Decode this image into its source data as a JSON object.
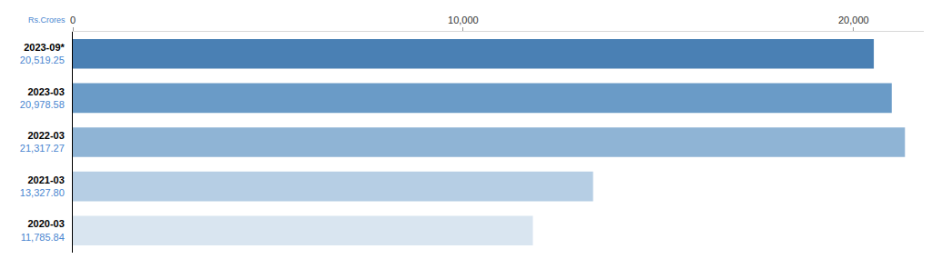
{
  "chart_data": {
    "type": "bar",
    "orientation": "horizontal",
    "xlabel": "Rs.Crores",
    "categories": [
      "2023-09*",
      "2023-03",
      "2022-03",
      "2021-03",
      "2020-03"
    ],
    "values": [
      20519.25,
      20978.58,
      21317.27,
      13327.8,
      11785.84
    ],
    "value_labels": [
      "20,519.25",
      "20,978.58",
      "21,317.27",
      "13,327.80",
      "11,785.84"
    ],
    "data_labels": true,
    "colors": [
      "#4a80b4",
      "#6a9bc7",
      "#8fb4d5",
      "#b6cee4",
      "#d9e5f0"
    ],
    "xlim": [
      0,
      21800
    ],
    "xticks": [
      0,
      {
        "value": 10000,
        "label": "10,000"
      },
      {
        "value": 20000,
        "label": "20,000"
      }
    ],
    "grid": false
  }
}
